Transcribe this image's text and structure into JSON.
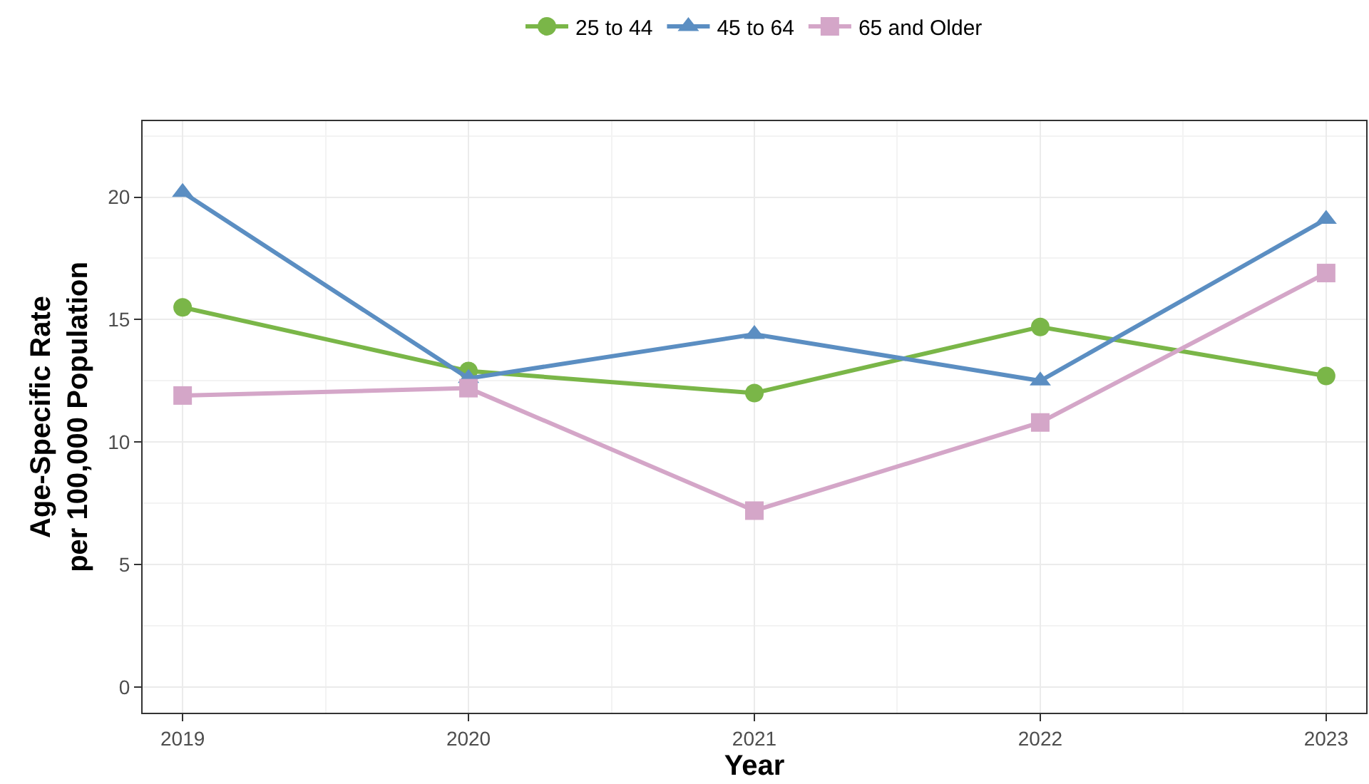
{
  "chart_data": {
    "type": "line",
    "xlabel": "Year",
    "ylabel": "Age-Specific Rate\nper 100,000 Population",
    "x": [
      2019,
      2020,
      2021,
      2022,
      2023
    ],
    "series": [
      {
        "name": "25 to 44",
        "color": "#7ab648",
        "marker": "circle",
        "values": [
          15.5,
          12.9,
          12.0,
          14.7,
          12.7
        ]
      },
      {
        "name": "45 to 64",
        "color": "#5b8ec2",
        "marker": "triangle",
        "values": [
          20.2,
          12.6,
          14.4,
          12.5,
          19.1
        ]
      },
      {
        "name": "65 and Older",
        "color": "#d4a6c8",
        "marker": "square",
        "values": [
          11.9,
          12.2,
          7.2,
          10.8,
          16.9
        ]
      }
    ],
    "xlim": [
      2018.86,
      2023.14
    ],
    "xticks": [
      2019,
      2020,
      2021,
      2022,
      2023
    ],
    "ylim": [
      -1.05,
      23.1
    ],
    "yticks": [
      0,
      5,
      10,
      15,
      20
    ],
    "grid": true,
    "legend": "top",
    "line_style": "solid"
  }
}
